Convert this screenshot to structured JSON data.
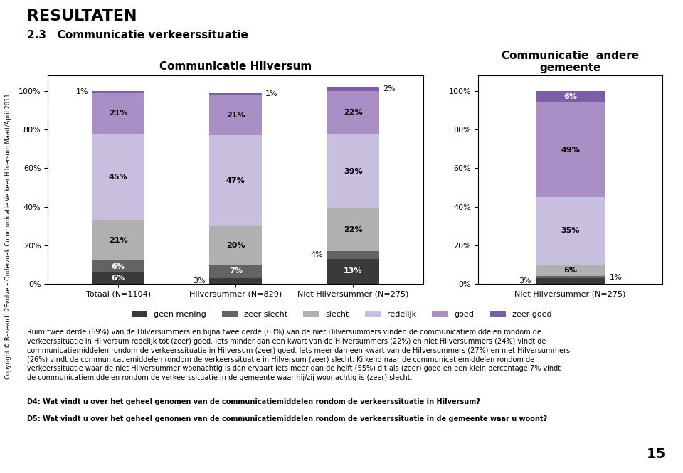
{
  "title": "RESULTATEN",
  "subtitle": "2.3   Communicatie verkeerssituatie",
  "annotations": [
    "Ruim twee derde (69%) van de Hilversummers en bijna twee derde (63%) van de niet Hilversummers vinden de communicatiemiddelen rondom de\nverkeerssituatie in Hilversum redelijk tot (zeer) goed. Iets minder dan een kwart van de Hilversummers (22%) en niet Hilversummers (24%) vindt de\ncommunicatiemiddelen rondom de verkeerssituatie in Hilversum (zeer) goed. Iets meer dan een kwart van de Hilversummers (27%) en niet Hilversummers\n(26%) vindt de communicatiemiddelen rondom de verkeerssituatie in Hilversum (zeer) slecht. Kijkend naar de communicatiemiddelen rondom de\nverkeerssituatie waar de niet Hilversummer woonachtig is dan ervaart iets meer dan de helft (55%) dit als (zeer) goed en een klein percentage 7% vindt\nde communicatiemiddelen rondom de verkeerssituatie in de gemeente waar hij/zij woonachtig is (zeer) slecht.",
    "D4: Wat vindt u over het geheel genomen van de communicatiemiddelen rondom de verkeerssituatie in Hilversum?",
    "D5: Wat vindt u over het geheel genomen van de communicatiemiddelen rondom de verkeerssituatie in de gemeente waar u woont?",
    "15",
    "Copyright © Research 2Evolve – Onderzoek Communicatie Verkeer Hilversum Maart/April 2011"
  ],
  "chart_data": [
    {
      "type": "bar",
      "stacked": true,
      "data_labels": true,
      "grid": false,
      "title": "Communicatie Hilversum",
      "categories": [
        "Totaal (N=1104)",
        "Hilversummer (N=829)",
        "Niet Hilversummer (N=275)"
      ],
      "series": [
        {
          "name": "geen mening",
          "color": "#3a3a3a",
          "values": [
            6,
            3,
            13
          ],
          "value_labels": [
            "6%",
            "3%",
            "13%"
          ]
        },
        {
          "name": "zeer slecht",
          "color": "#636363",
          "values": [
            6,
            7,
            4
          ],
          "value_labels": [
            "6%",
            "7%",
            "4%"
          ]
        },
        {
          "name": "slecht",
          "color": "#b0b0b0",
          "values": [
            21,
            20,
            22
          ],
          "value_labels": [
            "21%",
            "20%",
            "22%"
          ]
        },
        {
          "name": "redelijk",
          "color": "#c8bedd",
          "values": [
            45,
            47,
            39
          ],
          "value_labels": [
            "45%",
            "47%",
            "39%"
          ]
        },
        {
          "name": "goed",
          "color": "#a98fc5",
          "values": [
            21,
            21,
            22
          ],
          "value_labels": [
            "21%",
            "21%",
            "22%"
          ]
        },
        {
          "name": "zeer goed",
          "color": "#7b5ea7",
          "values": [
            1,
            1,
            2
          ],
          "value_labels": [
            "1%",
            "1%",
            "2%"
          ]
        }
      ],
      "ylim": [
        0,
        108
      ],
      "yticks": [
        {
          "value": 0,
          "label": "0%"
        },
        {
          "value": 20,
          "label": "20%"
        },
        {
          "value": 40,
          "label": "40%"
        },
        {
          "value": 60,
          "label": "60%"
        },
        {
          "value": 80,
          "label": "80%"
        },
        {
          "value": 100,
          "label": "100%"
        }
      ]
    },
    {
      "type": "bar",
      "stacked": true,
      "data_labels": true,
      "grid": false,
      "title": "Communicatie  andere\ngemeente",
      "categories": [
        "Niet Hilversummer (N=275)"
      ],
      "series": [
        {
          "name": "geen mening",
          "color": "#3a3a3a",
          "values": [
            3
          ],
          "value_labels": [
            "3%"
          ]
        },
        {
          "name": "zeer slecht",
          "color": "#636363",
          "values": [
            1
          ],
          "value_labels": [
            "1%"
          ]
        },
        {
          "name": "slecht",
          "color": "#b0b0b0",
          "values": [
            6
          ],
          "value_labels": [
            "6%"
          ]
        },
        {
          "name": "redelijk",
          "color": "#c8bedd",
          "values": [
            35
          ],
          "value_labels": [
            "35%"
          ]
        },
        {
          "name": "goed",
          "color": "#a98fc5",
          "values": [
            49
          ],
          "value_labels": [
            "49%"
          ]
        },
        {
          "name": "zeer goed",
          "color": "#7b5ea7",
          "values": [
            6
          ],
          "value_labels": [
            "6%"
          ]
        }
      ],
      "ylim": [
        0,
        108
      ],
      "yticks": [
        {
          "value": 0,
          "label": "0%"
        },
        {
          "value": 20,
          "label": "20%"
        },
        {
          "value": 40,
          "label": "40%"
        },
        {
          "value": 60,
          "label": "60%"
        },
        {
          "value": 80,
          "label": "80%"
        },
        {
          "value": 100,
          "label": "100%"
        }
      ]
    }
  ]
}
